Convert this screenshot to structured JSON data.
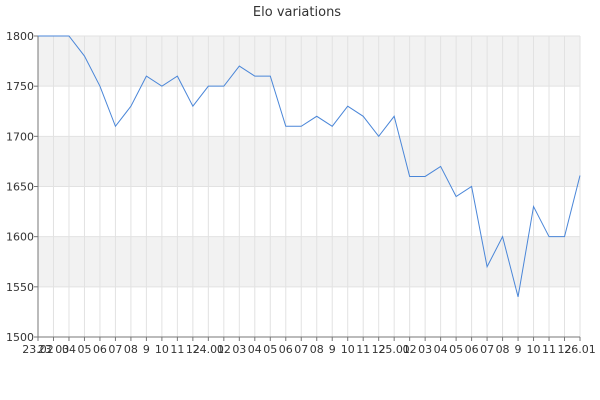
{
  "chart_data": {
    "type": "line",
    "title": "Elo variations",
    "xlabel": "",
    "ylabel": "",
    "ylim": [
      1500,
      1800
    ],
    "yticks": [
      1500,
      1550,
      1600,
      1650,
      1700,
      1750,
      1800
    ],
    "grid": true,
    "legend": "none",
    "colors": {
      "line": "#4a86d8",
      "band": "#f2f2f2",
      "grid": "#e2e2e2",
      "axis": "#777777"
    },
    "xtick_labels": [
      "23.02",
      "23 03",
      "04",
      "05",
      "06",
      "07",
      "08",
      "9",
      "10",
      "11",
      "12",
      "24.01",
      "02",
      "03",
      "04",
      "05",
      "06",
      "07",
      "08",
      "9",
      "10",
      "11",
      "12",
      "25.01",
      "02",
      "03",
      "04",
      "05",
      "06",
      "07",
      "08",
      "9",
      "10",
      "11",
      "12",
      "26.01"
    ],
    "series": [
      {
        "values": [
          1800,
          1800,
          1800,
          1780,
          1750,
          1710,
          1730,
          1760,
          1750,
          1760,
          1730,
          1750,
          1750,
          1770,
          1760,
          1760,
          1710,
          1710,
          1720,
          1710,
          1730,
          1720,
          1700,
          1720,
          1660,
          1660,
          1670,
          1640,
          1650,
          1570,
          1600,
          1540,
          1630,
          1600,
          1600,
          1661
        ]
      }
    ]
  }
}
